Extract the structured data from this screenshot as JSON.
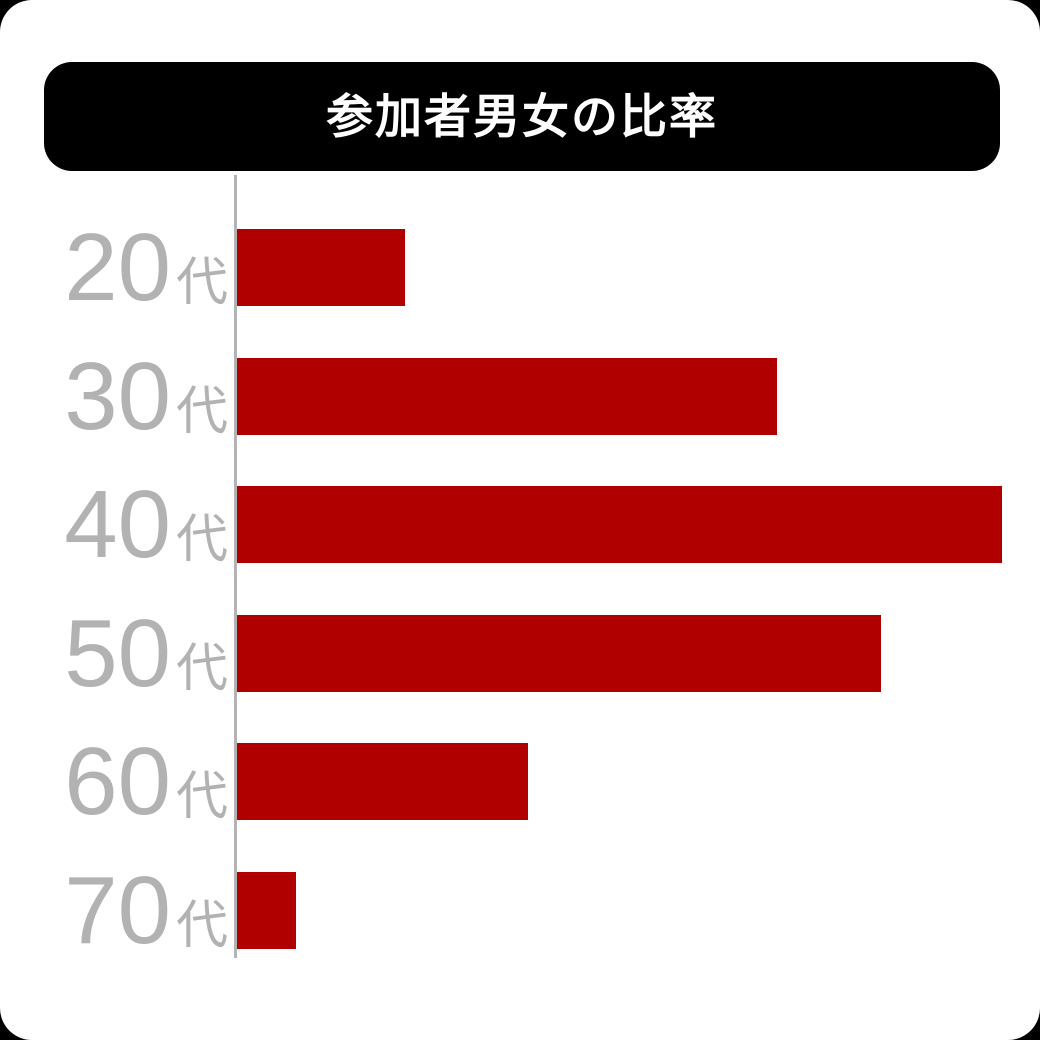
{
  "header": {
    "title": "参加者男女の比率"
  },
  "chart_data": {
    "type": "bar",
    "orientation": "horizontal",
    "title": "参加者男女の比率",
    "categories": [
      "20代",
      "30代",
      "40代",
      "50代",
      "60代",
      "70代"
    ],
    "category_parts": [
      {
        "number": "20",
        "suffix": "代"
      },
      {
        "number": "30",
        "suffix": "代"
      },
      {
        "number": "40",
        "suffix": "代"
      },
      {
        "number": "50",
        "suffix": "代"
      },
      {
        "number": "60",
        "suffix": "代"
      },
      {
        "number": "70",
        "suffix": "代"
      }
    ],
    "values": [
      6.8,
      21.9,
      31.0,
      26.1,
      11.8,
      2.4
    ],
    "value_labels_shown": false,
    "xlim": [
      0,
      31.2
    ],
    "grid": false,
    "legend": false,
    "colors": {
      "bar": "#b00000",
      "category_label": "#b2b2b2",
      "axis_line": "#b3b3b3",
      "title_background": "#000000",
      "title_text": "#ffffff",
      "card_background": "#ffffff",
      "page_background": "#000000"
    }
  }
}
